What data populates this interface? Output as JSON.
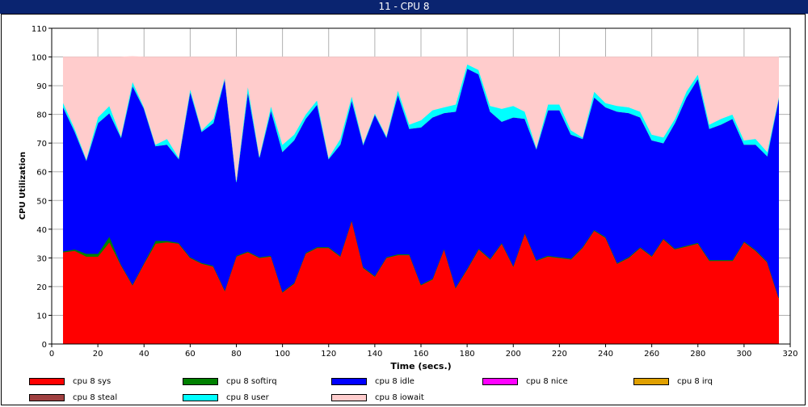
{
  "window": {
    "title": "11 - CPU 8"
  },
  "chart_data": {
    "type": "area",
    "stacked": true,
    "title": "",
    "xlabel": "Time (secs.)",
    "ylabel": "CPU Utilization",
    "xlim": [
      0,
      320
    ],
    "ylim": [
      0,
      110
    ],
    "x_ticks": [
      0,
      20,
      40,
      60,
      80,
      100,
      120,
      140,
      160,
      180,
      200,
      220,
      240,
      260,
      280,
      300,
      320
    ],
    "y_ticks": [
      0,
      10,
      20,
      30,
      40,
      50,
      60,
      70,
      80,
      90,
      100,
      110
    ],
    "grid": true,
    "legend_position": "bottom",
    "x": [
      5,
      10,
      15,
      20,
      25,
      30,
      35,
      40,
      45,
      50,
      55,
      60,
      65,
      70,
      75,
      80,
      85,
      90,
      95,
      100,
      105,
      110,
      115,
      120,
      125,
      130,
      135,
      140,
      145,
      150,
      155,
      160,
      165,
      170,
      175,
      180,
      185,
      190,
      195,
      200,
      205,
      210,
      215,
      220,
      225,
      230,
      235,
      240,
      245,
      250,
      255,
      260,
      265,
      270,
      275,
      280,
      285,
      290,
      295,
      300,
      305,
      310,
      315
    ],
    "series": [
      {
        "name": "cpu 8 sys",
        "color": "#ff0000",
        "values": [
          32,
          32.5,
          30.5,
          30.5,
          35.5,
          27.5,
          20.5,
          28,
          35,
          35.5,
          35,
          30,
          28,
          27,
          18.5,
          30.5,
          32,
          30,
          30.5,
          18,
          21,
          31.5,
          33.5,
          33.5,
          30.5,
          43,
          26.5,
          23.5,
          30,
          31,
          31,
          20.5,
          22.5,
          33,
          19.5,
          26,
          33,
          29.5,
          35,
          27,
          38.5,
          29,
          30.5,
          30,
          29.5,
          33.5,
          39.5,
          37,
          28,
          30,
          33.5,
          30.5,
          36.5,
          33,
          34,
          35,
          29,
          29,
          29,
          35.5,
          32.5,
          28.5,
          16
        ]
      },
      {
        "name": "cpu 8 softirq",
        "color": "#008000",
        "values": [
          0.3,
          0.5,
          1,
          1,
          2,
          0.3,
          0.3,
          0.3,
          1,
          0.5,
          0.3,
          0.3,
          0.3,
          0.3,
          0.3,
          0.3,
          0.3,
          0.3,
          0.3,
          0.3,
          0.3,
          0.3,
          0.3,
          0.3,
          0.3,
          0.3,
          0.3,
          0.3,
          0.3,
          0.3,
          0.3,
          0.3,
          0.3,
          0.3,
          0.3,
          0.3,
          0.3,
          0.3,
          0.3,
          0.3,
          0.3,
          0.3,
          0.3,
          0.3,
          0.3,
          0.3,
          0.3,
          0.3,
          0.3,
          0.3,
          0.3,
          0.3,
          0.3,
          0.3,
          0.3,
          0.3,
          0.3,
          0.3,
          0.3,
          0.3,
          0.3,
          0.3,
          0.3
        ]
      },
      {
        "name": "cpu 8 idle",
        "color": "#0000ff",
        "values": [
          50.2,
          41,
          32.5,
          45.5,
          43,
          44.2,
          69.2,
          53.7,
          33,
          33.5,
          29.2,
          57.7,
          45.7,
          49.7,
          73.7,
          25.7,
          55.7,
          34.7,
          50.7,
          48.7,
          49.7,
          46.7,
          49.7,
          30.7,
          38.7,
          41.7,
          42.7,
          56.2,
          41.7,
          55.7,
          43.7,
          54.7,
          56.2,
          47.2,
          61.2,
          69.7,
          60.7,
          51.2,
          42.2,
          51.7,
          39.7,
          38.7,
          50.7,
          51.2,
          43.2,
          37.7,
          46.2,
          45.2,
          52.7,
          50.2,
          45.2,
          40.2,
          33.2,
          43.7,
          51.7,
          57.2,
          45.7,
          47.2,
          49.2,
          33.7,
          36.7,
          36.7,
          69.2
        ]
      },
      {
        "name": "cpu 8 nice",
        "color": "#ff00ff",
        "values": [
          0,
          0,
          0,
          0,
          0,
          0,
          0,
          0,
          0,
          0,
          0,
          0,
          0,
          0,
          0,
          0,
          0,
          0,
          0,
          0,
          0,
          0,
          0,
          0,
          0,
          0,
          0,
          0,
          0,
          0,
          0,
          0,
          0,
          0,
          0,
          0,
          0,
          0,
          0,
          0,
          0,
          0,
          0,
          0,
          0,
          0,
          0,
          0,
          0,
          0,
          0,
          0,
          0,
          0,
          0,
          0,
          0,
          0,
          0,
          0,
          0,
          0,
          0
        ]
      },
      {
        "name": "cpu 8 irq",
        "color": "#e0a000",
        "values": [
          0,
          0,
          0,
          0,
          0,
          0,
          0,
          0,
          0,
          0,
          0,
          0,
          0,
          0,
          0,
          0,
          0,
          0,
          0,
          0,
          0,
          0,
          0,
          0,
          0,
          0,
          0,
          0,
          0,
          0,
          0,
          0,
          0,
          0,
          0,
          0,
          0,
          0,
          0,
          0,
          0,
          0,
          0,
          0,
          0,
          0,
          0,
          0,
          0,
          0,
          0,
          0,
          0,
          0,
          0,
          0,
          0,
          0,
          0,
          0,
          0,
          0,
          0
        ]
      },
      {
        "name": "cpu 8 steal",
        "color": "#a04040",
        "values": [
          0,
          0,
          0,
          0,
          0,
          0,
          0,
          0,
          0,
          0,
          0,
          0,
          0,
          0,
          0,
          0,
          0,
          0,
          0,
          0,
          0,
          0,
          0,
          0,
          0,
          0,
          0,
          0,
          0,
          0,
          0,
          0,
          0,
          0,
          0,
          0,
          0,
          0,
          0,
          0,
          0,
          0,
          0,
          0,
          0,
          0,
          0,
          0,
          0,
          0,
          0,
          0,
          0,
          0,
          0,
          0,
          0,
          0,
          0,
          0,
          0,
          0,
          0
        ]
      },
      {
        "name": "cpu 8 user",
        "color": "#00ffff",
        "values": [
          1.5,
          1,
          0.5,
          2,
          2.5,
          0.5,
          1.5,
          0.5,
          0.5,
          2,
          0.5,
          1,
          0.5,
          1.5,
          0.5,
          0.5,
          2,
          0.5,
          1.5,
          2.5,
          2,
          1.5,
          1.5,
          0.5,
          2,
          1.5,
          0.5,
          0.5,
          0.5,
          1.5,
          1.5,
          2.5,
          2.5,
          2,
          2.5,
          1.5,
          1.5,
          2,
          4.5,
          4,
          2.5,
          0.5,
          2,
          2,
          1.5,
          0.5,
          2,
          1.5,
          2,
          2,
          2,
          2,
          2,
          1.5,
          2,
          1.5,
          1.5,
          2,
          1.5,
          1.5,
          2,
          1.5,
          0.5
        ]
      },
      {
        "name": "cpu 8 iowait",
        "color": "#ffcccc",
        "values": [
          16,
          25,
          35.5,
          21,
          17,
          27.5,
          8.7,
          17.5,
          30.5,
          28.5,
          35,
          11,
          25.5,
          21.5,
          7,
          43,
          10,
          34.5,
          17,
          30.5,
          27,
          20,
          15,
          35,
          28.5,
          13.5,
          30,
          19.5,
          27.5,
          11.5,
          23.5,
          22,
          18.5,
          17.5,
          16.5,
          2.5,
          4.5,
          17,
          18,
          17,
          19,
          31.5,
          16.5,
          16.5,
          25.5,
          28,
          12,
          16,
          17,
          17.5,
          19,
          27,
          28,
          21.5,
          12,
          6,
          23.5,
          21.5,
          20,
          29,
          28.5,
          33,
          14
        ]
      }
    ]
  }
}
